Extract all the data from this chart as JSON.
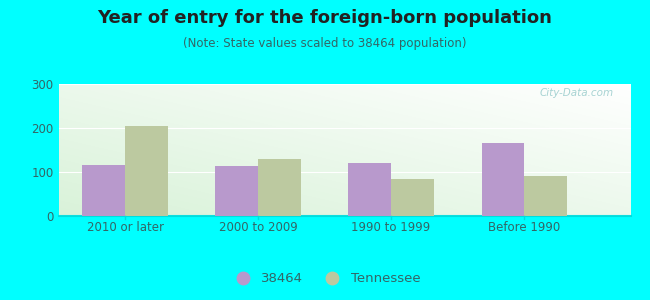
{
  "title": "Year of entry for the foreign-born population",
  "subtitle": "(Note: State values scaled to 38464 population)",
  "categories": [
    "2010 or later",
    "2000 to 2009",
    "1990 to 1999",
    "Before 1990"
  ],
  "values_38464": [
    115,
    113,
    120,
    165
  ],
  "values_tennessee": [
    205,
    130,
    85,
    90
  ],
  "bar_color_38464": "#b899cc",
  "bar_color_tennessee": "#bcc9a0",
  "background_color": "#00ffff",
  "ylim": [
    0,
    300
  ],
  "yticks": [
    0,
    100,
    200,
    300
  ],
  "legend_label_1": "38464",
  "legend_label_2": "Tennessee",
  "bar_width": 0.32,
  "title_fontsize": 13,
  "subtitle_fontsize": 8.5,
  "tick_fontsize": 8.5,
  "legend_fontsize": 9.5,
  "tick_color": "#336666",
  "title_color": "#222222",
  "subtitle_color": "#336666",
  "watermark_text": "City-Data.com",
  "watermark_color": "#99cccc"
}
